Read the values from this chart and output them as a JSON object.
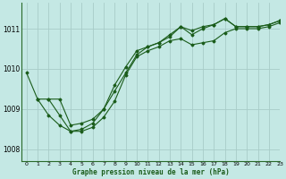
{
  "xlabel": "Graphe pression niveau de la mer (hPa)",
  "ylabel": "",
  "bg_color": "#c4e8e4",
  "grid_color": "#a8ccc8",
  "line_color": "#1a5c1a",
  "ylim": [
    1007.7,
    1011.65
  ],
  "xlim": [
    -0.5,
    23
  ],
  "yticks": [
    1008,
    1009,
    1010,
    1011
  ],
  "xticks": [
    0,
    1,
    2,
    3,
    4,
    5,
    6,
    7,
    8,
    9,
    10,
    11,
    12,
    13,
    14,
    15,
    16,
    17,
    18,
    19,
    20,
    21,
    22,
    23
  ],
  "series": [
    {
      "x": [
        0,
        1,
        2,
        3,
        4,
        5,
        6,
        7,
        8,
        9,
        10,
        11,
        12,
        13,
        14,
        15,
        16,
        17,
        18,
        19,
        20,
        21,
        22,
        23
      ],
      "y": [
        1009.9,
        1009.25,
        1009.25,
        1009.25,
        1008.6,
        1008.65,
        1008.75,
        1009.0,
        1009.45,
        1009.9,
        1010.35,
        1010.55,
        1010.65,
        1010.85,
        1011.05,
        1010.95,
        1011.05,
        1011.1,
        1011.25,
        1011.05,
        1011.05,
        1011.05,
        1011.1,
        1011.2
      ]
    },
    {
      "x": [
        1,
        2,
        3,
        4,
        5,
        6,
        7,
        8,
        9,
        10,
        11,
        12,
        13,
        14,
        15,
        16,
        17,
        18,
        19,
        20,
        21,
        22,
        23
      ],
      "y": [
        1009.25,
        1008.85,
        1008.6,
        1008.45,
        1008.5,
        1008.65,
        1009.0,
        1009.6,
        1010.05,
        1010.45,
        1010.55,
        1010.65,
        1010.8,
        1011.05,
        1010.85,
        1011.0,
        1011.1,
        1011.25,
        1011.05,
        1011.05,
        1011.05,
        1011.1,
        1011.2
      ]
    },
    {
      "x": [
        2,
        3,
        4,
        5,
        6,
        7,
        8,
        9,
        10,
        11,
        12,
        13,
        14,
        15,
        16,
        17,
        18,
        19,
        20,
        21,
        22,
        23
      ],
      "y": [
        1009.25,
        1008.85,
        1008.45,
        1008.45,
        1008.55,
        1008.8,
        1009.2,
        1009.85,
        1010.3,
        1010.45,
        1010.55,
        1010.7,
        1010.75,
        1010.6,
        1010.65,
        1010.7,
        1010.9,
        1011.0,
        1011.0,
        1011.0,
        1011.05,
        1011.15
      ]
    }
  ]
}
